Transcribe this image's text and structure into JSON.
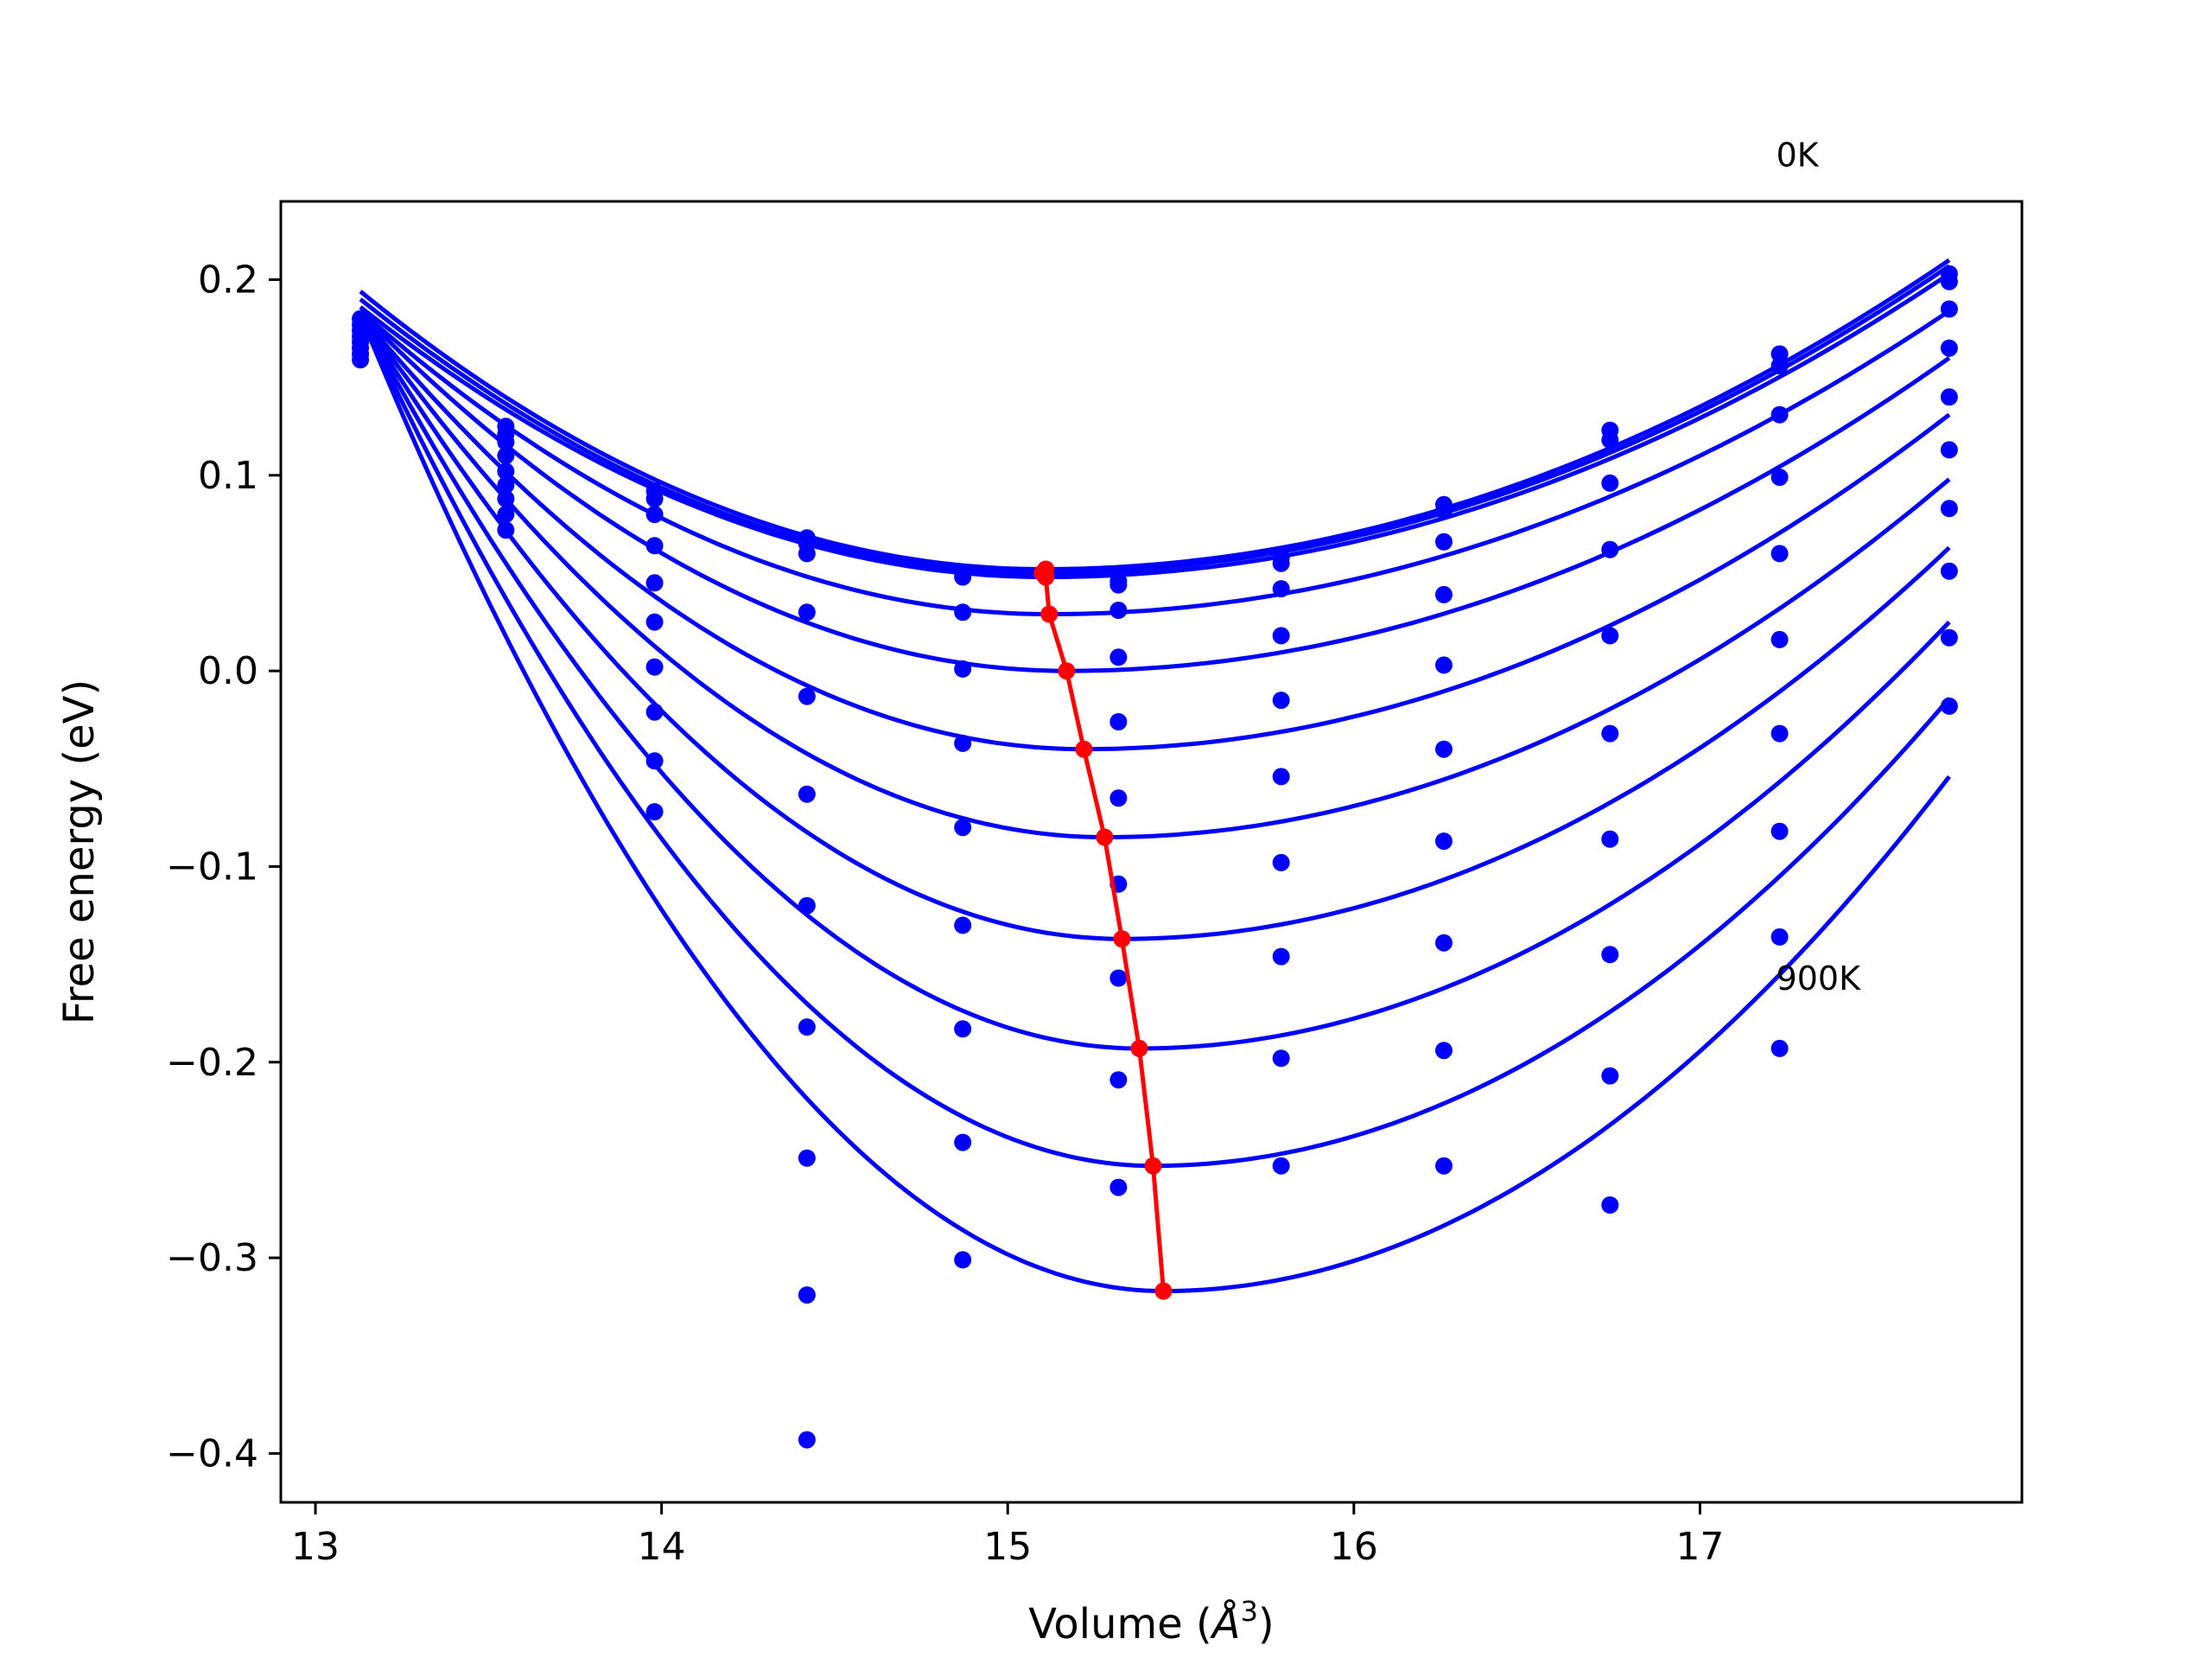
{
  "chart_data": {
    "type": "line",
    "xlabel": "Volume (Å^3)",
    "xlabel_parts": {
      "main": "Volume (",
      "symbol": "Å",
      "sup": "3",
      "close": ")"
    },
    "ylabel": "Free energy (eV)",
    "xlim": [
      12.9,
      17.93
    ],
    "ylim": [
      -0.425,
      0.24
    ],
    "xticks": [
      13,
      14,
      15,
      16,
      17
    ],
    "xtick_labels": [
      "13",
      "14",
      "15",
      "16",
      "17"
    ],
    "yticks": [
      0.2,
      0.1,
      0.0,
      -0.1,
      -0.2,
      -0.3,
      -0.4
    ],
    "ytick_labels": [
      "0.2",
      "0.1",
      "0.0",
      "−0.1",
      "−0.2",
      "−0.3",
      "−0.4"
    ],
    "grid": false,
    "annotations": [
      {
        "text": "0K",
        "x": 17.22,
        "y": 0.258
      },
      {
        "text": "900K",
        "x": 17.22,
        "y": -0.163
      }
    ],
    "series_color": "#0000ff",
    "minima_color": "#ff0000",
    "volumes": [
      13.13,
      13.55,
      13.98,
      14.42,
      14.87,
      15.32,
      15.79,
      16.26,
      16.74,
      17.23,
      17.72
    ],
    "fit_x_range": [
      13.13,
      17.72
    ],
    "curves": [
      {
        "v0": 15.1,
        "e0": 0.052,
        "left": 0.194,
        "right": 0.21
      },
      {
        "v0": 15.1,
        "e0": 0.05,
        "left": 0.19,
        "right": 0.207
      },
      {
        "v0": 15.11,
        "e0": 0.048,
        "left": 0.186,
        "right": 0.203
      },
      {
        "v0": 15.12,
        "e0": 0.029,
        "left": 0.184,
        "right": 0.184
      },
      {
        "v0": 15.17,
        "e0": 0.0,
        "left": 0.183,
        "right": 0.16
      },
      {
        "v0": 15.22,
        "e0": -0.04,
        "left": 0.182,
        "right": 0.131
      },
      {
        "v0": 15.28,
        "e0": -0.085,
        "left": 0.182,
        "right": 0.098
      },
      {
        "v0": 15.33,
        "e0": -0.137,
        "left": 0.182,
        "right": 0.063
      },
      {
        "v0": 15.38,
        "e0": -0.193,
        "left": 0.182,
        "right": 0.025
      },
      {
        "v0": 15.42,
        "e0": -0.253,
        "left": 0.182,
        "right": -0.014
      },
      {
        "v0": 15.45,
        "e0": -0.317,
        "left": 0.182,
        "right": -0.054
      }
    ],
    "points": [
      {
        "x": 13.13,
        "y": [
          0.159,
          0.162,
          0.165,
          0.168,
          0.171,
          0.174,
          0.177,
          0.18
        ]
      },
      {
        "x": 13.55,
        "y": [
          0.125,
          0.121,
          0.117,
          0.11,
          0.102,
          0.095,
          0.088,
          0.08,
          0.072
        ]
      },
      {
        "x": 13.98,
        "y": [
          0.092,
          0.088,
          0.08,
          0.064,
          0.045,
          0.025,
          0.002,
          -0.021,
          -0.046,
          -0.072
        ]
      },
      {
        "x": 14.42,
        "y": [
          0.068,
          0.065,
          0.06,
          0.03,
          -0.013,
          -0.063,
          -0.12,
          -0.182,
          -0.249,
          -0.319,
          -0.393
        ]
      },
      {
        "x": 14.87,
        "y": [
          0.05,
          0.048,
          0.03,
          0.001,
          -0.037,
          -0.08,
          -0.13,
          -0.183,
          -0.241,
          -0.301
        ]
      },
      {
        "x": 15.32,
        "y": [
          0.046,
          0.044,
          0.031,
          0.007,
          -0.026,
          -0.065,
          -0.109,
          -0.157,
          -0.209,
          -0.264
        ]
      },
      {
        "x": 15.79,
        "y": [
          0.058,
          0.055,
          0.042,
          0.018,
          -0.015,
          -0.054,
          -0.098,
          -0.146,
          -0.198,
          -0.253
        ]
      },
      {
        "x": 16.26,
        "y": [
          0.085,
          0.082,
          0.066,
          0.039,
          0.003,
          -0.04,
          -0.087,
          -0.139,
          -0.194,
          -0.253
        ]
      },
      {
        "x": 16.74,
        "y": [
          0.123,
          0.118,
          0.096,
          0.062,
          0.018,
          -0.032,
          -0.086,
          -0.145,
          -0.207,
          -0.273
        ]
      },
      {
        "x": 17.23,
        "y": [
          0.162,
          0.156,
          0.131,
          0.099,
          0.06,
          0.016,
          -0.032,
          -0.082,
          -0.136,
          -0.193
        ]
      },
      {
        "x": 17.72,
        "y": [
          0.203,
          0.199,
          0.185,
          0.165,
          0.14,
          0.113,
          0.083,
          0.051,
          0.017,
          -0.018
        ]
      }
    ],
    "minima": [
      {
        "x": 15.11,
        "y": 0.052
      },
      {
        "x": 15.1,
        "y": 0.05
      },
      {
        "x": 15.11,
        "y": 0.048
      },
      {
        "x": 15.12,
        "y": 0.029
      },
      {
        "x": 15.17,
        "y": 0.0
      },
      {
        "x": 15.22,
        "y": -0.04
      },
      {
        "x": 15.28,
        "y": -0.085
      },
      {
        "x": 15.33,
        "y": -0.137
      },
      {
        "x": 15.38,
        "y": -0.193
      },
      {
        "x": 15.42,
        "y": -0.253
      },
      {
        "x": 15.45,
        "y": -0.317
      }
    ]
  }
}
